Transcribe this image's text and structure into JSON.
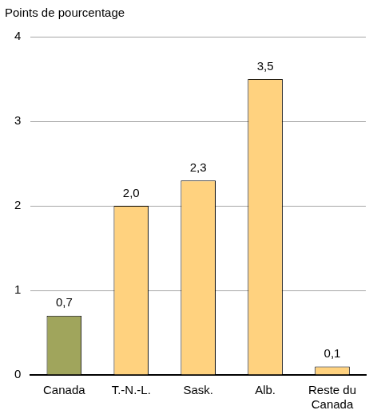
{
  "chart_data": {
    "type": "bar",
    "y_label": "Points de pourcentage",
    "categories": [
      "Canada",
      "T.-N.-L.",
      "Sask.",
      "Alb.",
      "Reste du Canada"
    ],
    "values": [
      0.7,
      2.0,
      2.3,
      3.5,
      0.1
    ],
    "value_labels": [
      "0,7",
      "2,0",
      "2,3",
      "3,5",
      "0,1"
    ],
    "colors": [
      "#a0a55c",
      "#ffd27f",
      "#ffd27f",
      "#ffd27f",
      "#ffd27f"
    ],
    "ylim": [
      0,
      4
    ],
    "yticks": [
      0,
      1,
      2,
      3,
      4
    ],
    "grid": true,
    "data_labels": true
  }
}
